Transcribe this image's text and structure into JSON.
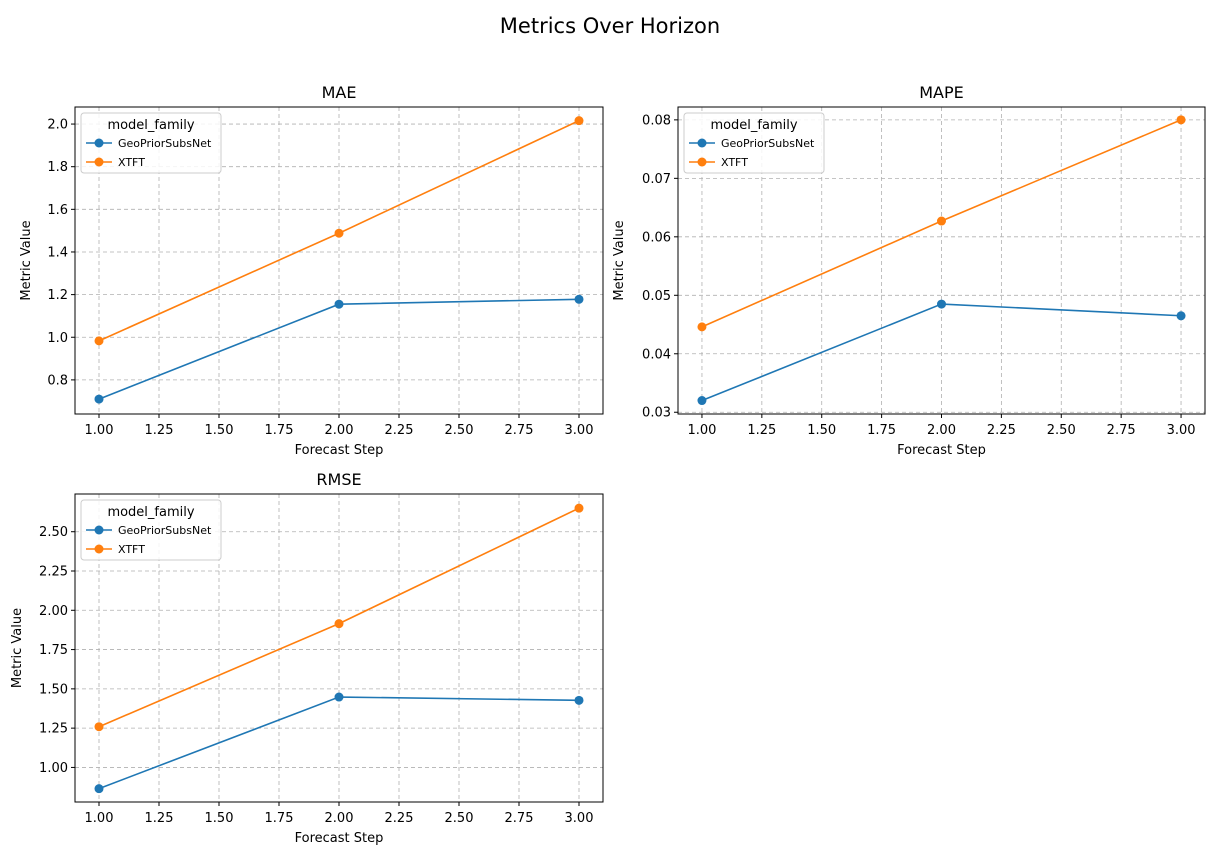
{
  "figure": {
    "suptitle": "Metrics Over Horizon"
  },
  "colors": {
    "GeoPriorSubsNet": "#1f77b4",
    "XTFT": "#ff7f0e"
  },
  "chart_data": [
    {
      "type": "line",
      "title": "MAE",
      "xlabel": "Forecast Step",
      "ylabel": "Metric Value",
      "xlim": [
        0.9,
        3.1
      ],
      "ylim": [
        0.64,
        2.08
      ],
      "xticks": [
        "1.00",
        "1.25",
        "1.50",
        "1.75",
        "2.00",
        "2.25",
        "2.50",
        "2.75",
        "3.00"
      ],
      "yticks": [
        "0.8",
        "1.0",
        "1.2",
        "1.4",
        "1.6",
        "1.8",
        "2.0"
      ],
      "grid": true,
      "legend": {
        "title": "model_family",
        "placement": "upper left"
      },
      "x": [
        1,
        2,
        3
      ],
      "series": [
        {
          "name": "GeoPriorSubsNet",
          "values": [
            0.71,
            1.155,
            1.178
          ]
        },
        {
          "name": "XTFT",
          "values": [
            0.983,
            1.488,
            2.016
          ]
        }
      ]
    },
    {
      "type": "line",
      "title": "MAPE",
      "xlabel": "Forecast Step",
      "ylabel": "Metric Value",
      "xlim": [
        0.9,
        3.1
      ],
      "ylim": [
        0.0297,
        0.0822
      ],
      "xticks": [
        "1.00",
        "1.25",
        "1.50",
        "1.75",
        "2.00",
        "2.25",
        "2.50",
        "2.75",
        "3.00"
      ],
      "yticks": [
        "0.03",
        "0.04",
        "0.05",
        "0.06",
        "0.07",
        "0.08"
      ],
      "grid": true,
      "legend": {
        "title": "model_family",
        "placement": "upper left"
      },
      "x": [
        1,
        2,
        3
      ],
      "series": [
        {
          "name": "GeoPriorSubsNet",
          "values": [
            0.032,
            0.0485,
            0.0465
          ]
        },
        {
          "name": "XTFT",
          "values": [
            0.0446,
            0.0627,
            0.08
          ]
        }
      ]
    },
    {
      "type": "line",
      "title": "RMSE",
      "xlabel": "Forecast Step",
      "ylabel": "Metric Value",
      "xlim": [
        0.9,
        3.1
      ],
      "ylim": [
        0.78,
        2.74
      ],
      "xticks": [
        "1.00",
        "1.25",
        "1.50",
        "1.75",
        "2.00",
        "2.25",
        "2.50",
        "2.75",
        "3.00"
      ],
      "yticks": [
        "1.00",
        "1.25",
        "1.50",
        "1.75",
        "2.00",
        "2.25",
        "2.50"
      ],
      "grid": true,
      "legend": {
        "title": "model_family",
        "placement": "upper left"
      },
      "x": [
        1,
        2,
        3
      ],
      "series": [
        {
          "name": "GeoPriorSubsNet",
          "values": [
            0.865,
            1.448,
            1.427
          ]
        },
        {
          "name": "XTFT",
          "values": [
            1.259,
            1.915,
            2.65
          ]
        }
      ]
    }
  ]
}
